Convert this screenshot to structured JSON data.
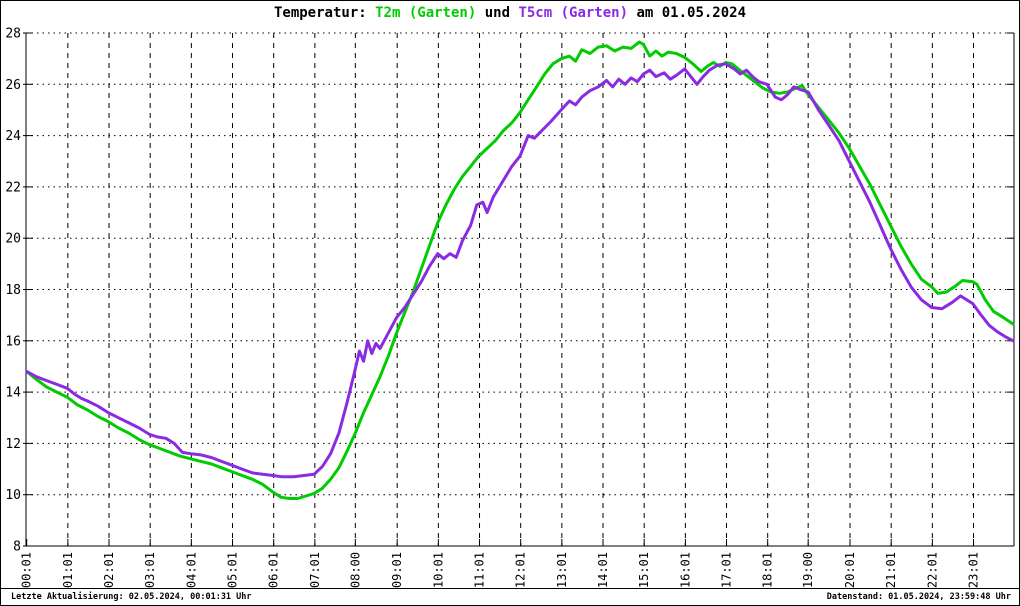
{
  "title": {
    "prefix": "Temperatur: ",
    "series1": "T2m (Garten)",
    "mid": " und ",
    "series2": "T5cm (Garten)",
    "suffix": " am 01.05.2024"
  },
  "footer": {
    "left": "Letzte Aktualisierung: 02.05.2024, 00:01:31 Uhr",
    "right": "Datenstand: 01.05.2024, 23:59:48 Uhr"
  },
  "chart_data": {
    "type": "line",
    "title": "Temperatur: T2m (Garten) und T5cm (Garten) am 01.05.2024",
    "xlabel": "",
    "ylabel": "",
    "ylim": [
      8,
      28
    ],
    "y_ticks": [
      8,
      10,
      12,
      14,
      16,
      18,
      20,
      22,
      24,
      26,
      28
    ],
    "x_range_hours": [
      0,
      24
    ],
    "x_tick_labels": [
      "00:01",
      "01:01",
      "02:01",
      "03:01",
      "04:01",
      "05:01",
      "06:01",
      "07:01",
      "08:00",
      "09:01",
      "10:01",
      "11:01",
      "12:01",
      "13:01",
      "14:01",
      "15:01",
      "16:01",
      "17:01",
      "18:01",
      "19:00",
      "20:01",
      "21:01",
      "22:01",
      "23:01"
    ],
    "grid": {
      "horizontal": "dotted",
      "vertical": "dashed"
    },
    "legend_position": "colored-in-title",
    "series": [
      {
        "name": "T2m (Garten)",
        "color": "#00cc00",
        "points": [
          [
            0.02,
            14.8
          ],
          [
            0.25,
            14.5
          ],
          [
            0.5,
            14.2
          ],
          [
            0.75,
            14.0
          ],
          [
            1.0,
            13.8
          ],
          [
            1.25,
            13.5
          ],
          [
            1.5,
            13.3
          ],
          [
            1.75,
            13.05
          ],
          [
            2.0,
            12.85
          ],
          [
            2.25,
            12.6
          ],
          [
            2.5,
            12.4
          ],
          [
            2.75,
            12.15
          ],
          [
            3.0,
            11.95
          ],
          [
            3.25,
            11.8
          ],
          [
            3.5,
            11.65
          ],
          [
            3.75,
            11.5
          ],
          [
            4.0,
            11.4
          ],
          [
            4.25,
            11.3
          ],
          [
            4.5,
            11.2
          ],
          [
            4.75,
            11.05
          ],
          [
            5.0,
            10.9
          ],
          [
            5.25,
            10.75
          ],
          [
            5.5,
            10.6
          ],
          [
            5.75,
            10.4
          ],
          [
            6.0,
            10.1
          ],
          [
            6.2,
            9.9
          ],
          [
            6.4,
            9.85
          ],
          [
            6.6,
            9.85
          ],
          [
            6.8,
            9.95
          ],
          [
            7.0,
            10.05
          ],
          [
            7.2,
            10.25
          ],
          [
            7.4,
            10.6
          ],
          [
            7.6,
            11.05
          ],
          [
            7.8,
            11.7
          ],
          [
            8.0,
            12.4
          ],
          [
            8.2,
            13.2
          ],
          [
            8.4,
            13.9
          ],
          [
            8.6,
            14.6
          ],
          [
            8.8,
            15.4
          ],
          [
            9.0,
            16.3
          ],
          [
            9.2,
            17.1
          ],
          [
            9.4,
            17.9
          ],
          [
            9.6,
            18.8
          ],
          [
            9.8,
            19.7
          ],
          [
            10.0,
            20.6
          ],
          [
            10.2,
            21.3
          ],
          [
            10.4,
            21.9
          ],
          [
            10.6,
            22.4
          ],
          [
            10.8,
            22.8
          ],
          [
            11.0,
            23.2
          ],
          [
            11.2,
            23.5
          ],
          [
            11.4,
            23.8
          ],
          [
            11.6,
            24.2
          ],
          [
            11.8,
            24.5
          ],
          [
            12.0,
            24.9
          ],
          [
            12.2,
            25.4
          ],
          [
            12.4,
            25.9
          ],
          [
            12.6,
            26.4
          ],
          [
            12.8,
            26.8
          ],
          [
            13.0,
            27.0
          ],
          [
            13.2,
            27.1
          ],
          [
            13.35,
            26.9
          ],
          [
            13.5,
            27.35
          ],
          [
            13.7,
            27.2
          ],
          [
            13.9,
            27.45
          ],
          [
            14.1,
            27.5
          ],
          [
            14.3,
            27.3
          ],
          [
            14.5,
            27.45
          ],
          [
            14.7,
            27.4
          ],
          [
            14.9,
            27.65
          ],
          [
            15.0,
            27.55
          ],
          [
            15.15,
            27.1
          ],
          [
            15.3,
            27.3
          ],
          [
            15.45,
            27.1
          ],
          [
            15.6,
            27.25
          ],
          [
            15.8,
            27.2
          ],
          [
            16.0,
            27.05
          ],
          [
            16.2,
            26.8
          ],
          [
            16.4,
            26.5
          ],
          [
            16.55,
            26.7
          ],
          [
            16.7,
            26.85
          ],
          [
            16.85,
            26.7
          ],
          [
            17.0,
            26.85
          ],
          [
            17.15,
            26.8
          ],
          [
            17.3,
            26.6
          ],
          [
            17.5,
            26.35
          ],
          [
            17.7,
            26.1
          ],
          [
            17.9,
            25.85
          ],
          [
            18.1,
            25.7
          ],
          [
            18.3,
            25.65
          ],
          [
            18.5,
            25.7
          ],
          [
            18.7,
            25.85
          ],
          [
            18.85,
            25.95
          ],
          [
            19.0,
            25.6
          ],
          [
            19.25,
            25.1
          ],
          [
            19.5,
            24.6
          ],
          [
            19.75,
            24.1
          ],
          [
            20.0,
            23.5
          ],
          [
            20.25,
            22.8
          ],
          [
            20.5,
            22.1
          ],
          [
            20.75,
            21.3
          ],
          [
            21.0,
            20.5
          ],
          [
            21.25,
            19.7
          ],
          [
            21.5,
            19.0
          ],
          [
            21.75,
            18.4
          ],
          [
            22.0,
            18.1
          ],
          [
            22.15,
            17.85
          ],
          [
            22.35,
            17.9
          ],
          [
            22.55,
            18.1
          ],
          [
            22.75,
            18.35
          ],
          [
            23.0,
            18.3
          ],
          [
            23.1,
            18.2
          ],
          [
            23.3,
            17.6
          ],
          [
            23.5,
            17.15
          ],
          [
            23.75,
            16.9
          ],
          [
            23.98,
            16.65
          ]
        ]
      },
      {
        "name": "T5cm (Garten)",
        "color": "#8a2be2",
        "points": [
          [
            0.02,
            14.8
          ],
          [
            0.25,
            14.6
          ],
          [
            0.5,
            14.45
          ],
          [
            0.75,
            14.3
          ],
          [
            1.0,
            14.15
          ],
          [
            1.2,
            13.9
          ],
          [
            1.35,
            13.75
          ],
          [
            1.5,
            13.65
          ],
          [
            1.75,
            13.45
          ],
          [
            2.0,
            13.2
          ],
          [
            2.25,
            13.0
          ],
          [
            2.5,
            12.8
          ],
          [
            2.75,
            12.6
          ],
          [
            3.0,
            12.35
          ],
          [
            3.2,
            12.25
          ],
          [
            3.4,
            12.2
          ],
          [
            3.6,
            12.0
          ],
          [
            3.8,
            11.65
          ],
          [
            4.0,
            11.6
          ],
          [
            4.25,
            11.55
          ],
          [
            4.5,
            11.45
          ],
          [
            4.75,
            11.3
          ],
          [
            5.0,
            11.15
          ],
          [
            5.25,
            11.0
          ],
          [
            5.5,
            10.85
          ],
          [
            5.75,
            10.8
          ],
          [
            6.0,
            10.75
          ],
          [
            6.2,
            10.7
          ],
          [
            6.5,
            10.7
          ],
          [
            6.75,
            10.75
          ],
          [
            7.0,
            10.8
          ],
          [
            7.2,
            11.1
          ],
          [
            7.4,
            11.6
          ],
          [
            7.6,
            12.4
          ],
          [
            7.8,
            13.6
          ],
          [
            8.0,
            14.9
          ],
          [
            8.1,
            15.6
          ],
          [
            8.2,
            15.2
          ],
          [
            8.3,
            16.0
          ],
          [
            8.4,
            15.5
          ],
          [
            8.5,
            15.9
          ],
          [
            8.6,
            15.7
          ],
          [
            8.8,
            16.3
          ],
          [
            9.0,
            16.9
          ],
          [
            9.2,
            17.3
          ],
          [
            9.4,
            17.8
          ],
          [
            9.6,
            18.3
          ],
          [
            9.8,
            18.9
          ],
          [
            10.0,
            19.4
          ],
          [
            10.15,
            19.2
          ],
          [
            10.3,
            19.4
          ],
          [
            10.45,
            19.25
          ],
          [
            10.6,
            19.9
          ],
          [
            10.8,
            20.5
          ],
          [
            10.95,
            21.3
          ],
          [
            11.1,
            21.4
          ],
          [
            11.2,
            21.0
          ],
          [
            11.35,
            21.6
          ],
          [
            11.5,
            22.0
          ],
          [
            11.65,
            22.4
          ],
          [
            11.8,
            22.8
          ],
          [
            12.0,
            23.2
          ],
          [
            12.2,
            24.0
          ],
          [
            12.35,
            23.9
          ],
          [
            12.5,
            24.15
          ],
          [
            12.75,
            24.55
          ],
          [
            13.0,
            25.0
          ],
          [
            13.2,
            25.35
          ],
          [
            13.35,
            25.2
          ],
          [
            13.5,
            25.5
          ],
          [
            13.7,
            25.75
          ],
          [
            13.9,
            25.9
          ],
          [
            14.1,
            26.15
          ],
          [
            14.25,
            25.9
          ],
          [
            14.4,
            26.2
          ],
          [
            14.55,
            26.0
          ],
          [
            14.7,
            26.25
          ],
          [
            14.85,
            26.1
          ],
          [
            15.0,
            26.4
          ],
          [
            15.15,
            26.55
          ],
          [
            15.3,
            26.3
          ],
          [
            15.5,
            26.45
          ],
          [
            15.65,
            26.2
          ],
          [
            15.8,
            26.35
          ],
          [
            16.0,
            26.6
          ],
          [
            16.15,
            26.3
          ],
          [
            16.3,
            26.0
          ],
          [
            16.45,
            26.3
          ],
          [
            16.6,
            26.55
          ],
          [
            16.8,
            26.75
          ],
          [
            17.0,
            26.8
          ],
          [
            17.2,
            26.6
          ],
          [
            17.35,
            26.4
          ],
          [
            17.5,
            26.55
          ],
          [
            17.65,
            26.3
          ],
          [
            17.8,
            26.1
          ],
          [
            18.0,
            26.0
          ],
          [
            18.2,
            25.5
          ],
          [
            18.35,
            25.4
          ],
          [
            18.5,
            25.6
          ],
          [
            18.65,
            25.9
          ],
          [
            18.8,
            25.8
          ],
          [
            19.0,
            25.7
          ],
          [
            19.25,
            25.0
          ],
          [
            19.5,
            24.4
          ],
          [
            19.75,
            23.8
          ],
          [
            20.0,
            23.0
          ],
          [
            20.25,
            22.2
          ],
          [
            20.5,
            21.4
          ],
          [
            20.75,
            20.5
          ],
          [
            21.0,
            19.6
          ],
          [
            21.25,
            18.8
          ],
          [
            21.5,
            18.1
          ],
          [
            21.75,
            17.6
          ],
          [
            22.0,
            17.3
          ],
          [
            22.25,
            17.25
          ],
          [
            22.5,
            17.5
          ],
          [
            22.7,
            17.75
          ],
          [
            22.85,
            17.6
          ],
          [
            23.0,
            17.45
          ],
          [
            23.2,
            17.0
          ],
          [
            23.4,
            16.6
          ],
          [
            23.6,
            16.35
          ],
          [
            23.8,
            16.15
          ],
          [
            23.98,
            16.0
          ]
        ]
      }
    ]
  }
}
